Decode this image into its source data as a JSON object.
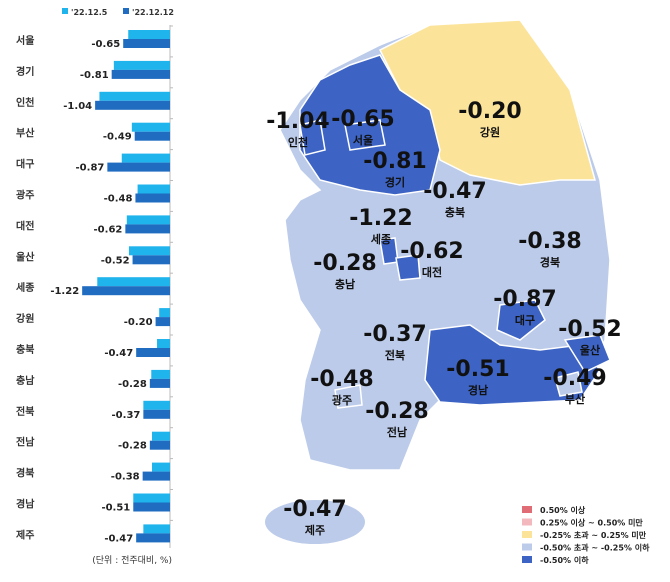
{
  "chart_data": [
    {
      "type": "bar",
      "orientation": "horizontal",
      "categories": [
        "서울",
        "경기",
        "인천",
        "부산",
        "대구",
        "광주",
        "대전",
        "울산",
        "세종",
        "강원",
        "충북",
        "충남",
        "전북",
        "전남",
        "경북",
        "경남",
        "제주"
      ],
      "series": [
        {
          "name": "'22.12.5",
          "color": "#1fb4ec",
          "values": [
            -0.58,
            -0.78,
            -0.98,
            -0.53,
            -0.67,
            -0.45,
            -0.6,
            -0.57,
            -1.01,
            -0.15,
            -0.18,
            -0.26,
            -0.37,
            -0.25,
            -0.25,
            -0.51,
            -0.37
          ]
        },
        {
          "name": "'22.12.12",
          "color": "#1f6cc0",
          "values": [
            -0.65,
            -0.81,
            -1.04,
            -0.49,
            -0.87,
            -0.48,
            -0.62,
            -0.52,
            -1.22,
            -0.2,
            -0.47,
            -0.28,
            -0.37,
            -0.28,
            -0.38,
            -0.51,
            -0.47
          ]
        }
      ],
      "data_labels": [
        "-0.65",
        "-0.81",
        "-1.04",
        "-0.49",
        "-0.87",
        "-0.48",
        "-0.62",
        "-0.52",
        "-1.22",
        "-0.20",
        "-0.47",
        "-0.28",
        "-0.37",
        "-0.28",
        "-0.38",
        "-0.51",
        "-0.47"
      ],
      "unit_note": "(단위 : 전주대비, %)",
      "legend_placement": "top"
    },
    {
      "type": "choropleth-map",
      "regions": [
        {
          "name": "인천",
          "value": "-1.04",
          "class": 4
        },
        {
          "name": "서울",
          "value": "-0.65",
          "class": 4
        },
        {
          "name": "경기",
          "value": "-0.81",
          "class": 4
        },
        {
          "name": "강원",
          "value": "-0.20",
          "class": 2
        },
        {
          "name": "충북",
          "value": "-0.47",
          "class": 3
        },
        {
          "name": "세종",
          "value": "-1.22",
          "class": 4
        },
        {
          "name": "대전",
          "value": "-0.62",
          "class": 4
        },
        {
          "name": "충남",
          "value": "-0.28",
          "class": 3
        },
        {
          "name": "경북",
          "value": "-0.38",
          "class": 3
        },
        {
          "name": "대구",
          "value": "-0.87",
          "class": 4
        },
        {
          "name": "울산",
          "value": "-0.52",
          "class": 4
        },
        {
          "name": "전북",
          "value": "-0.37",
          "class": 3
        },
        {
          "name": "경남",
          "value": "-0.51",
          "class": 4
        },
        {
          "name": "부산",
          "value": "-0.49",
          "class": 3
        },
        {
          "name": "광주",
          "value": "-0.48",
          "class": 3
        },
        {
          "name": "전남",
          "value": "-0.28",
          "class": 3
        },
        {
          "name": "제주",
          "value": "-0.47",
          "class": 3
        }
      ],
      "legend": [
        {
          "label": "0.50% 이상",
          "color": "#e06c75"
        },
        {
          "label": "0.25% 이상 ~ 0.50% 미만",
          "color": "#f2b8bd"
        },
        {
          "label": "-0.25% 초과 ~ 0.25% 미만",
          "color": "#fbe49a"
        },
        {
          "label": "-0.50% 초과 ~ -0.25% 이하",
          "color": "#bccbe9"
        },
        {
          "label": "-0.50% 이하",
          "color": "#3d64c4"
        }
      ],
      "legend_placement": "bottom-right"
    }
  ]
}
